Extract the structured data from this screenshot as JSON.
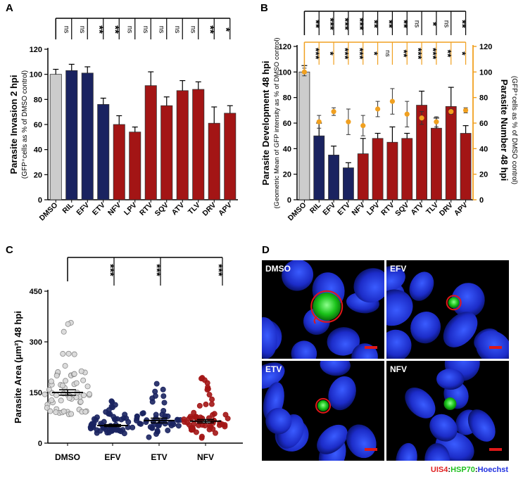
{
  "colors": {
    "gray": "#cccccc",
    "navy": "#1a2360",
    "red": "#a31515",
    "orange": "#f0a020",
    "ns_black": "#000000"
  },
  "panel_labels": [
    "A",
    "B",
    "C",
    "D"
  ],
  "chart_data": [
    {
      "panel": "A",
      "type": "bar",
      "categories": [
        "DMSO",
        "RIL",
        "EFV",
        "ETV",
        "NFV",
        "LPV",
        "RTV",
        "SQV",
        "ATV",
        "TLV",
        "DRV",
        "APV"
      ],
      "values": [
        100,
        103,
        101,
        76,
        60,
        54,
        91,
        75,
        87,
        88,
        61,
        69
      ],
      "errors": [
        4,
        5,
        5,
        5,
        7,
        4,
        11,
        7,
        8,
        6,
        13,
        6
      ],
      "color_groups": [
        "gray",
        "navy",
        "navy",
        "navy",
        "red",
        "red",
        "red",
        "red",
        "red",
        "red",
        "red",
        "red"
      ],
      "ylabel": "Parasite Invasion 2 hpi",
      "ylabel2": "(GFP⁺cells as % of DMSO control)",
      "ylim": [
        0,
        120
      ],
      "yticks": [
        0,
        20,
        40,
        60,
        80,
        100,
        120
      ],
      "significance": [
        "ns",
        "ns",
        "ns",
        "**",
        "**",
        "ns",
        "ns",
        "ns",
        "ns",
        "ns",
        "**",
        "*"
      ]
    },
    {
      "panel": "B",
      "type": "bar+scatter",
      "categories": [
        "DMSO",
        "RIL",
        "EFV",
        "ETV",
        "NFV",
        "LPV",
        "RTV",
        "SQV",
        "ATV",
        "TLV",
        "DRV",
        "APV"
      ],
      "values": [
        100,
        50,
        35,
        25,
        36,
        48,
        45,
        48,
        74,
        56,
        73,
        52
      ],
      "errors": [
        5,
        10,
        7,
        4,
        12,
        4,
        12,
        4,
        11,
        8,
        15,
        6
      ],
      "color_groups": [
        "gray",
        "navy",
        "navy",
        "navy",
        "red",
        "red",
        "red",
        "red",
        "red",
        "red",
        "red",
        "red"
      ],
      "points": [
        100,
        61,
        69,
        61,
        58,
        71,
        77,
        67,
        64,
        61,
        69,
        70
      ],
      "point_errors": [
        3,
        5,
        3,
        10,
        8,
        6,
        10,
        10,
        5,
        4,
        2,
        2
      ],
      "ylabel": "Parasite Development 48 hpi",
      "ylabel2": "(Geometric Mean of GFP intensity as % of DMSO control)",
      "y2label": "Parasite Number 48 hpi",
      "y2label2": "(GFP⁺cells as % of DMSO control)",
      "ylim": [
        0,
        120
      ],
      "yticks": [
        0,
        20,
        40,
        60,
        80,
        100,
        120
      ],
      "significance_black": [
        "**",
        "***",
        "***",
        "***",
        "**",
        "**",
        "**",
        "ns",
        "*",
        "ns",
        "**"
      ],
      "significance_orange": [
        "***",
        "*",
        "***",
        "***",
        "*",
        "ns",
        "**",
        "***",
        "***",
        "**",
        "*"
      ]
    },
    {
      "panel": "C",
      "type": "scatter",
      "categories": [
        "DMSO",
        "EFV",
        "ETV",
        "NFV"
      ],
      "means": [
        150,
        52,
        67,
        65
      ],
      "sems": [
        8,
        3,
        7,
        5
      ],
      "ylabel": "Parasite Area (μm²) 48 hpi",
      "ylim": [
        0,
        450
      ],
      "yticks": [
        0,
        150,
        300,
        450
      ],
      "significance": [
        "***",
        "***",
        "***"
      ]
    }
  ],
  "panel_d": {
    "labels": [
      "DMSO",
      "EFV",
      "ETV",
      "NFV"
    ],
    "legend": [
      {
        "text": "UIS4",
        "color": "#e02020"
      },
      {
        "text": ":",
        "color": "#000000"
      },
      {
        "text": "HSP70",
        "color": "#20c020"
      },
      {
        "text": ":",
        "color": "#000000"
      },
      {
        "text": "Hoechst",
        "color": "#2030e0"
      }
    ]
  }
}
